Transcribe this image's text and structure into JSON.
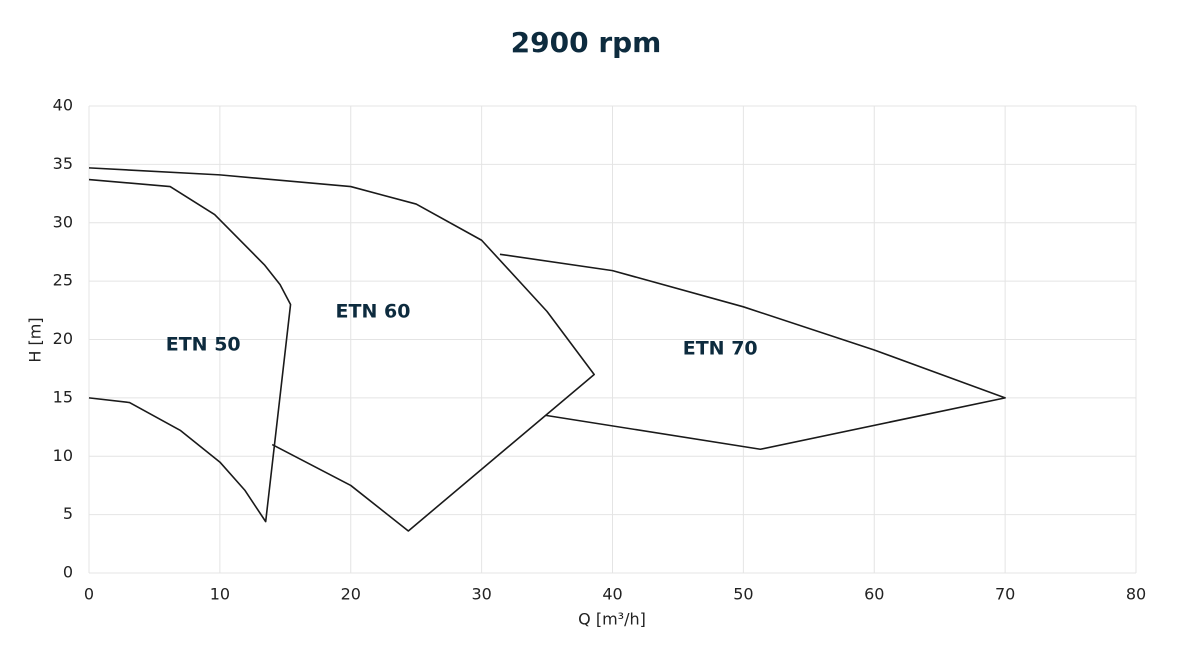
{
  "chart_data": {
    "type": "line",
    "title": "2900 rpm",
    "x_label": "Q [m³/h]",
    "y_label": "H [m]",
    "xlim": [
      0,
      80
    ],
    "xticks": [
      0,
      10,
      20,
      30,
      40,
      50,
      60,
      70,
      80
    ],
    "ylim": [
      0,
      40
    ],
    "yticks": [
      0,
      5,
      10,
      15,
      20,
      25,
      30,
      35,
      40
    ],
    "grid": true,
    "series": [
      {
        "name": "ETN 50",
        "color": "#1a1a1a",
        "x": [
          0,
          6.2,
          9.6,
          13.4,
          14.6,
          15.4,
          13.5,
          11.9,
          10,
          7,
          3.1,
          0
        ],
        "values": [
          33.7,
          33.1,
          30.7,
          26.4,
          24.7,
          23,
          4.4,
          7.1,
          9.5,
          12.2,
          14.6,
          15
        ]
      },
      {
        "name": "ETN 60",
        "color": "#1a1a1a",
        "x": [
          0,
          10,
          20,
          25,
          30,
          35,
          38.6,
          24.4,
          20,
          14
        ],
        "values": [
          34.7,
          34.1,
          33.1,
          31.6,
          28.5,
          22.4,
          17,
          3.6,
          7.5,
          11
        ]
      },
      {
        "name": "ETN 70",
        "color": "#1a1a1a",
        "x": [
          31.4,
          40,
          50,
          60,
          70,
          51.3,
          34.9
        ],
        "values": [
          27.3,
          25.9,
          22.8,
          19.1,
          15,
          10.6,
          13.5
        ]
      }
    ]
  }
}
